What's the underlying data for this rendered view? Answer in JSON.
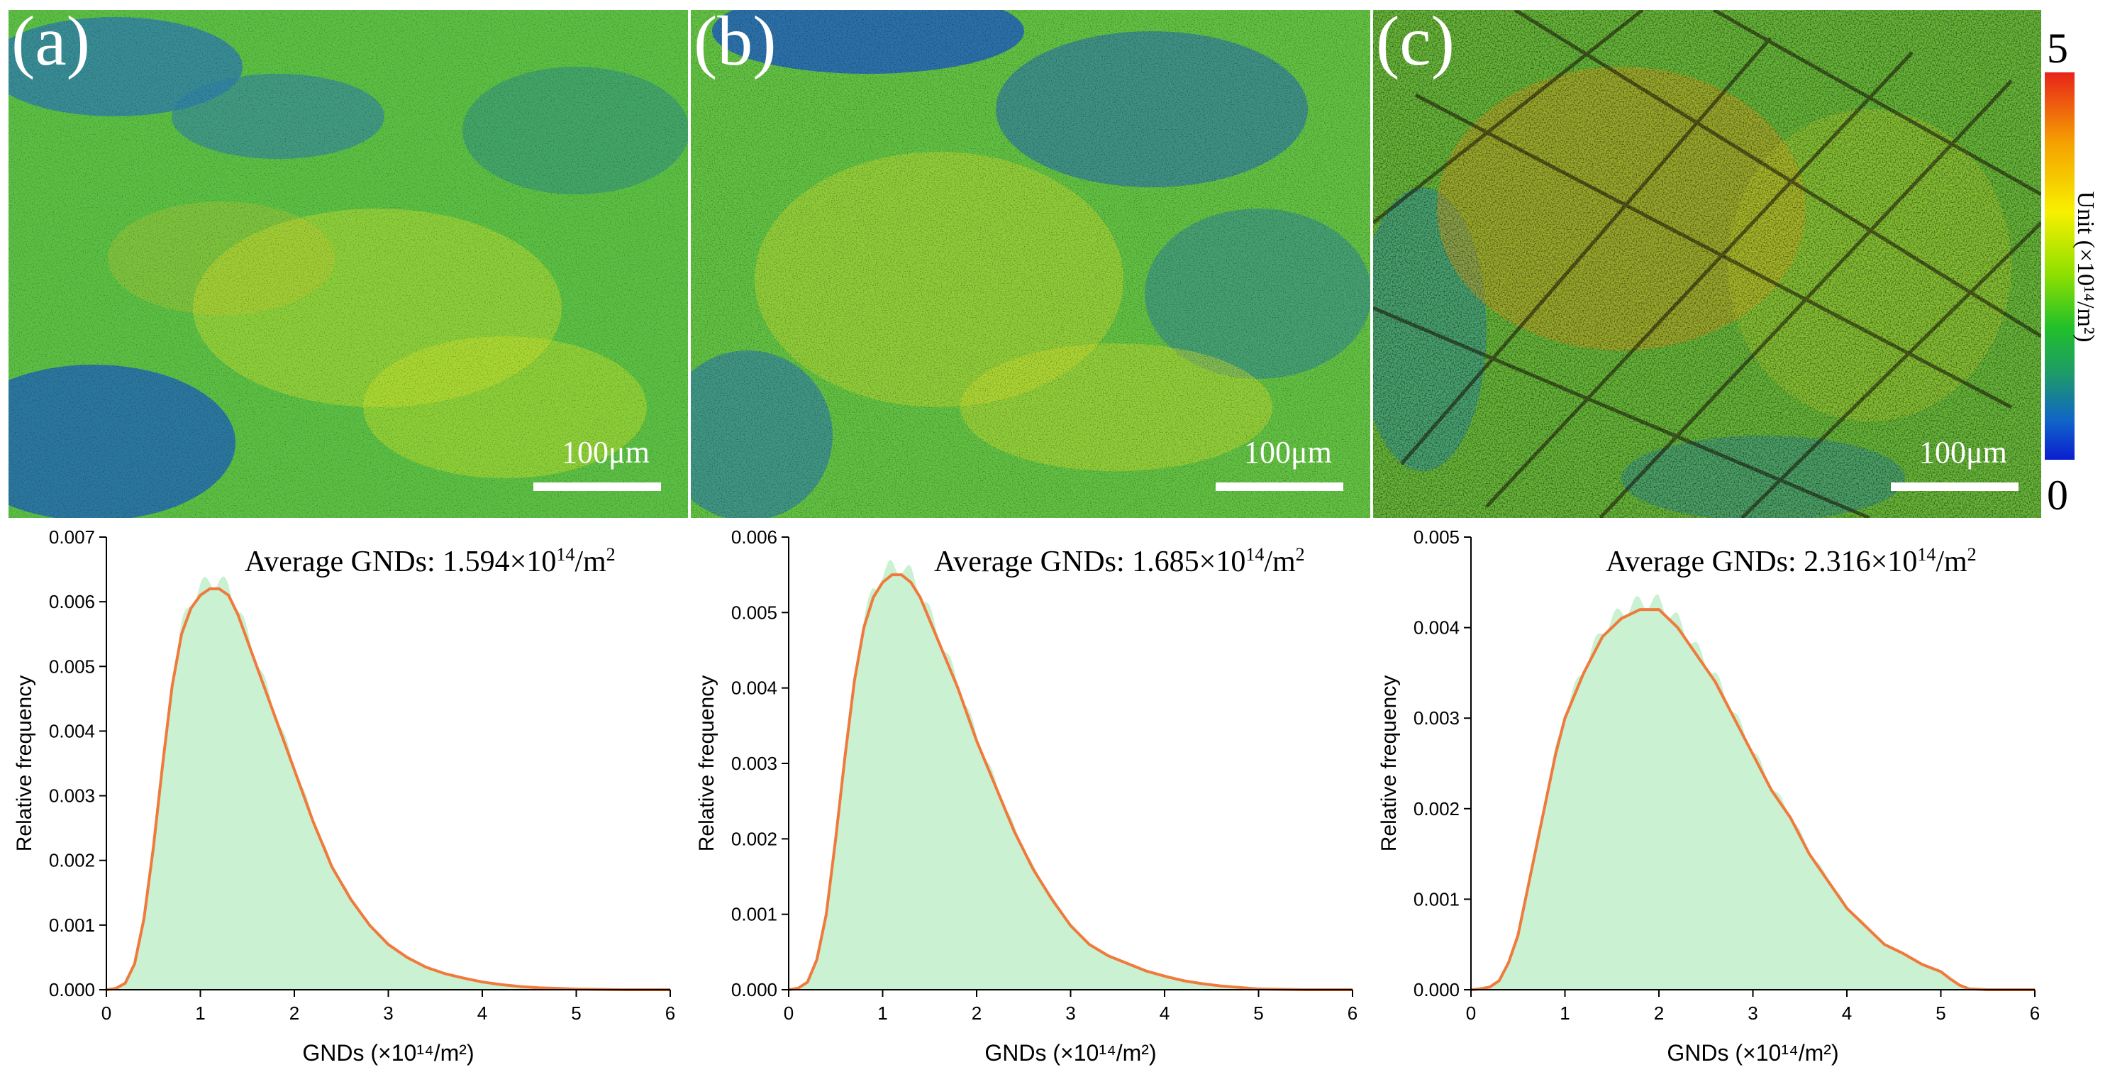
{
  "panels": [
    {
      "label": "(a)",
      "scale_bar": "100μm"
    },
    {
      "label": "(b)",
      "scale_bar": "100μm"
    },
    {
      "label": "(c)",
      "scale_bar": "100μm"
    }
  ],
  "colorbar": {
    "max_label": "5",
    "min_label": "0",
    "unit_label": "Unit (×10¹⁴/m²)",
    "colors": [
      "#e8231a",
      "#f5a000",
      "#f8f000",
      "#8fe000",
      "#21c02a",
      "#1e9a6a",
      "#1064c8",
      "#0a1ed0"
    ]
  },
  "colors": {
    "hist_fill": "#c9f1d2",
    "curve": "#f07a3c",
    "axis": "#000000"
  },
  "chart_data": [
    {
      "type": "area",
      "panel": "a",
      "annotation_prefix": "Average GNDs: 1.594×10",
      "annotation_exp": "14",
      "annotation_suffix": "/m",
      "annotation_sup2": "2",
      "average": 1.594,
      "xlabel": "GNDs (×10¹⁴/m²)",
      "ylabel": "Relative frequency",
      "xlim": [
        0,
        6
      ],
      "ylim": [
        0,
        0.007
      ],
      "xticks": [
        "0",
        "1",
        "2",
        "3",
        "4",
        "5",
        "6"
      ],
      "yticks": [
        "0.000",
        "0.001",
        "0.002",
        "0.003",
        "0.004",
        "0.005",
        "0.006",
        "0.007"
      ],
      "x": [
        0,
        0.1,
        0.2,
        0.3,
        0.4,
        0.5,
        0.6,
        0.7,
        0.8,
        0.9,
        1.0,
        1.1,
        1.2,
        1.3,
        1.4,
        1.5,
        1.6,
        1.8,
        2.0,
        2.2,
        2.4,
        2.6,
        2.8,
        3.0,
        3.2,
        3.4,
        3.6,
        3.8,
        4.0,
        4.2,
        4.4,
        4.6,
        4.8,
        5.0,
        5.5,
        6.0
      ],
      "y": [
        0,
        2e-05,
        0.0001,
        0.0004,
        0.0011,
        0.0022,
        0.0035,
        0.0047,
        0.0055,
        0.0059,
        0.0061,
        0.0062,
        0.0062,
        0.0061,
        0.0058,
        0.0054,
        0.005,
        0.0042,
        0.0034,
        0.0026,
        0.0019,
        0.0014,
        0.001,
        0.0007,
        0.0005,
        0.00035,
        0.00025,
        0.00018,
        0.00012,
        8e-05,
        5e-05,
        3e-05,
        2e-05,
        1e-05,
        0,
        0
      ]
    },
    {
      "type": "area",
      "panel": "b",
      "annotation_prefix": "Average GNDs: 1.685×10",
      "annotation_exp": "14",
      "annotation_suffix": "/m",
      "annotation_sup2": "2",
      "average": 1.685,
      "xlabel": "GNDs (×10¹⁴/m²)",
      "ylabel": "Relative frequency",
      "xlim": [
        0,
        6
      ],
      "ylim": [
        0,
        0.006
      ],
      "xticks": [
        "0",
        "1",
        "2",
        "3",
        "4",
        "5",
        "6"
      ],
      "yticks": [
        "0.000",
        "0.001",
        "0.002",
        "0.003",
        "0.004",
        "0.005",
        "0.006"
      ],
      "x": [
        0,
        0.1,
        0.2,
        0.3,
        0.4,
        0.5,
        0.6,
        0.7,
        0.8,
        0.9,
        1.0,
        1.1,
        1.2,
        1.3,
        1.4,
        1.5,
        1.6,
        1.8,
        2.0,
        2.2,
        2.4,
        2.6,
        2.8,
        3.0,
        3.2,
        3.4,
        3.6,
        3.8,
        4.0,
        4.2,
        4.4,
        4.6,
        4.8,
        5.0,
        5.5,
        6.0
      ],
      "y": [
        0,
        2e-05,
        0.0001,
        0.0004,
        0.001,
        0.002,
        0.0031,
        0.0041,
        0.0048,
        0.0052,
        0.0054,
        0.0055,
        0.0055,
        0.0054,
        0.0052,
        0.0049,
        0.0046,
        0.004,
        0.0033,
        0.0027,
        0.0021,
        0.0016,
        0.0012,
        0.00085,
        0.0006,
        0.00045,
        0.00035,
        0.00025,
        0.00018,
        0.00012,
        8e-05,
        5e-05,
        3e-05,
        1e-05,
        0,
        0
      ]
    },
    {
      "type": "area",
      "panel": "c",
      "annotation_prefix": "Average GNDs: 2.316×10",
      "annotation_exp": "14",
      "annotation_suffix": "/m",
      "annotation_sup2": "2",
      "average": 2.316,
      "xlabel": "GNDs (×10¹⁴/m²)",
      "ylabel": "Relative frequency",
      "xlim": [
        0,
        6
      ],
      "ylim": [
        0,
        0.005
      ],
      "xticks": [
        "0",
        "1",
        "2",
        "3",
        "4",
        "5",
        "6"
      ],
      "yticks": [
        "0.000",
        "0.001",
        "0.002",
        "0.003",
        "0.004",
        "0.005"
      ],
      "x": [
        0,
        0.1,
        0.2,
        0.3,
        0.4,
        0.5,
        0.6,
        0.7,
        0.8,
        0.9,
        1.0,
        1.2,
        1.4,
        1.6,
        1.8,
        2.0,
        2.2,
        2.4,
        2.6,
        2.8,
        3.0,
        3.2,
        3.4,
        3.6,
        3.8,
        4.0,
        4.2,
        4.4,
        4.6,
        4.8,
        5.0,
        5.1,
        5.2,
        5.3,
        5.5,
        6.0
      ],
      "y": [
        0,
        1e-05,
        3e-05,
        0.0001,
        0.0003,
        0.0006,
        0.0011,
        0.0016,
        0.0021,
        0.0026,
        0.003,
        0.0035,
        0.0039,
        0.0041,
        0.0042,
        0.0042,
        0.004,
        0.0037,
        0.0034,
        0.003,
        0.0026,
        0.0022,
        0.0019,
        0.0015,
        0.0012,
        0.0009,
        0.0007,
        0.0005,
        0.0004,
        0.00028,
        0.0002,
        0.00012,
        5e-05,
        1e-05,
        0,
        0
      ]
    }
  ]
}
